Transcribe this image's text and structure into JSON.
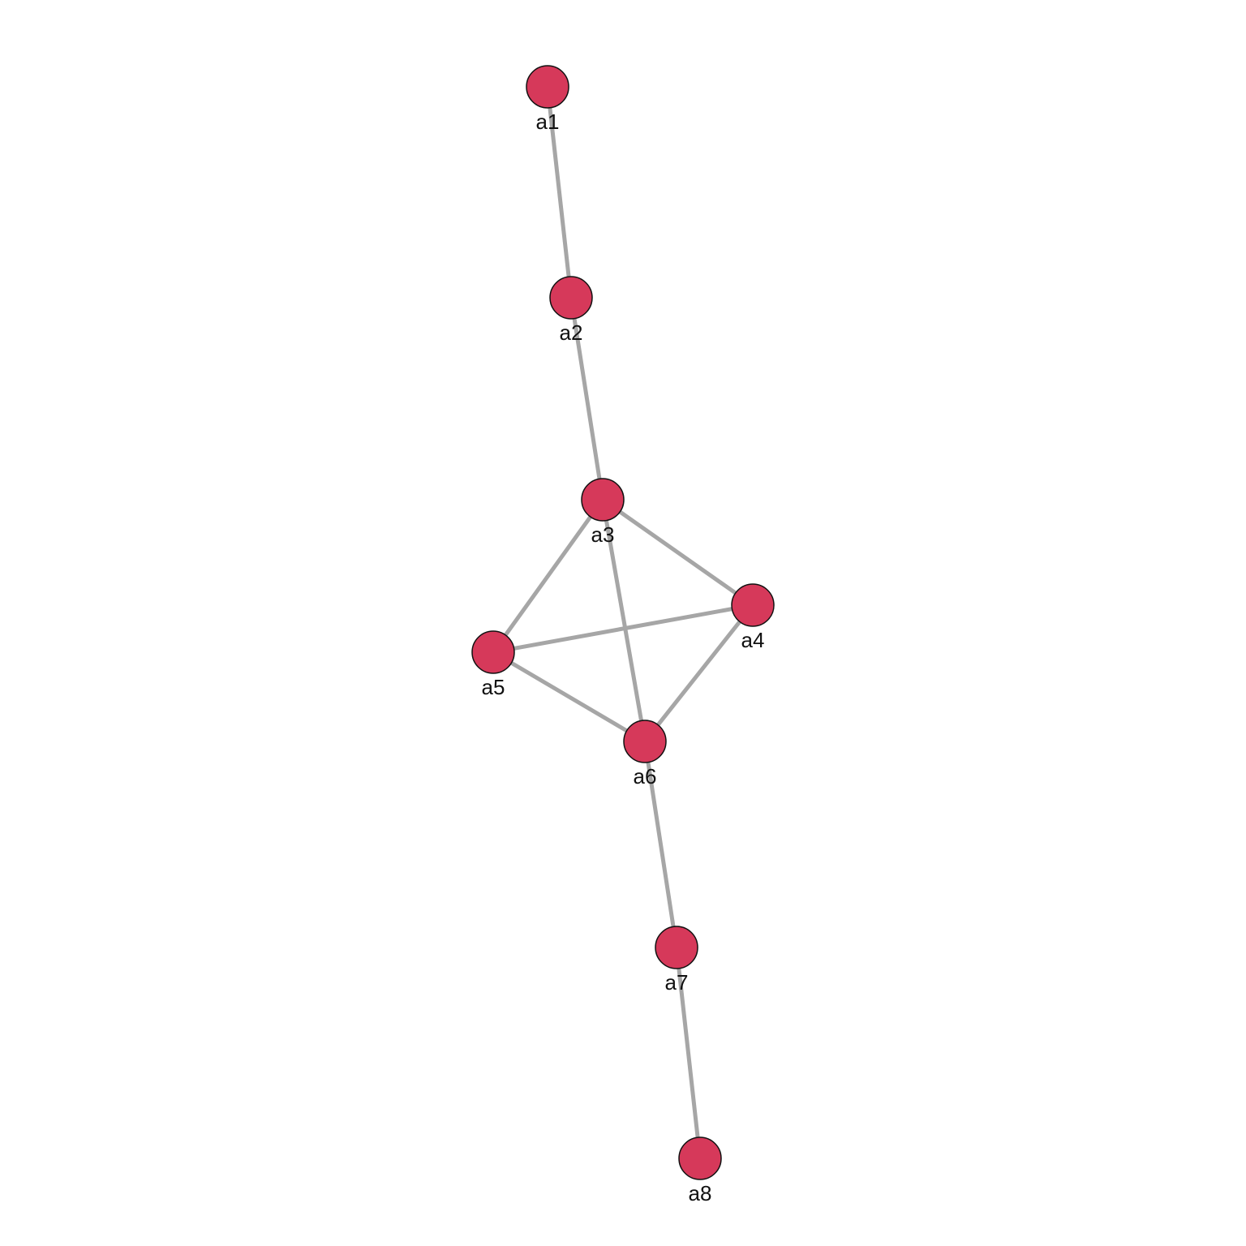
{
  "graph": {
    "colors": {
      "node_fill": "#d6395a",
      "node_stroke": "#111111",
      "edge": "#a6a6a6",
      "label": "#111111",
      "background": "#ffffff"
    },
    "nodes": [
      {
        "id": "a1",
        "label": "a1"
      },
      {
        "id": "a2",
        "label": "a2"
      },
      {
        "id": "a3",
        "label": "a3"
      },
      {
        "id": "a4",
        "label": "a4"
      },
      {
        "id": "a5",
        "label": "a5"
      },
      {
        "id": "a6",
        "label": "a6"
      },
      {
        "id": "a7",
        "label": "a7"
      },
      {
        "id": "a8",
        "label": "a8"
      }
    ],
    "edges": [
      {
        "source": "a1",
        "target": "a2"
      },
      {
        "source": "a2",
        "target": "a3"
      },
      {
        "source": "a3",
        "target": "a4"
      },
      {
        "source": "a3",
        "target": "a5"
      },
      {
        "source": "a3",
        "target": "a6"
      },
      {
        "source": "a4",
        "target": "a5"
      },
      {
        "source": "a4",
        "target": "a6"
      },
      {
        "source": "a5",
        "target": "a6"
      },
      {
        "source": "a6",
        "target": "a7"
      },
      {
        "source": "a7",
        "target": "a8"
      }
    ]
  }
}
